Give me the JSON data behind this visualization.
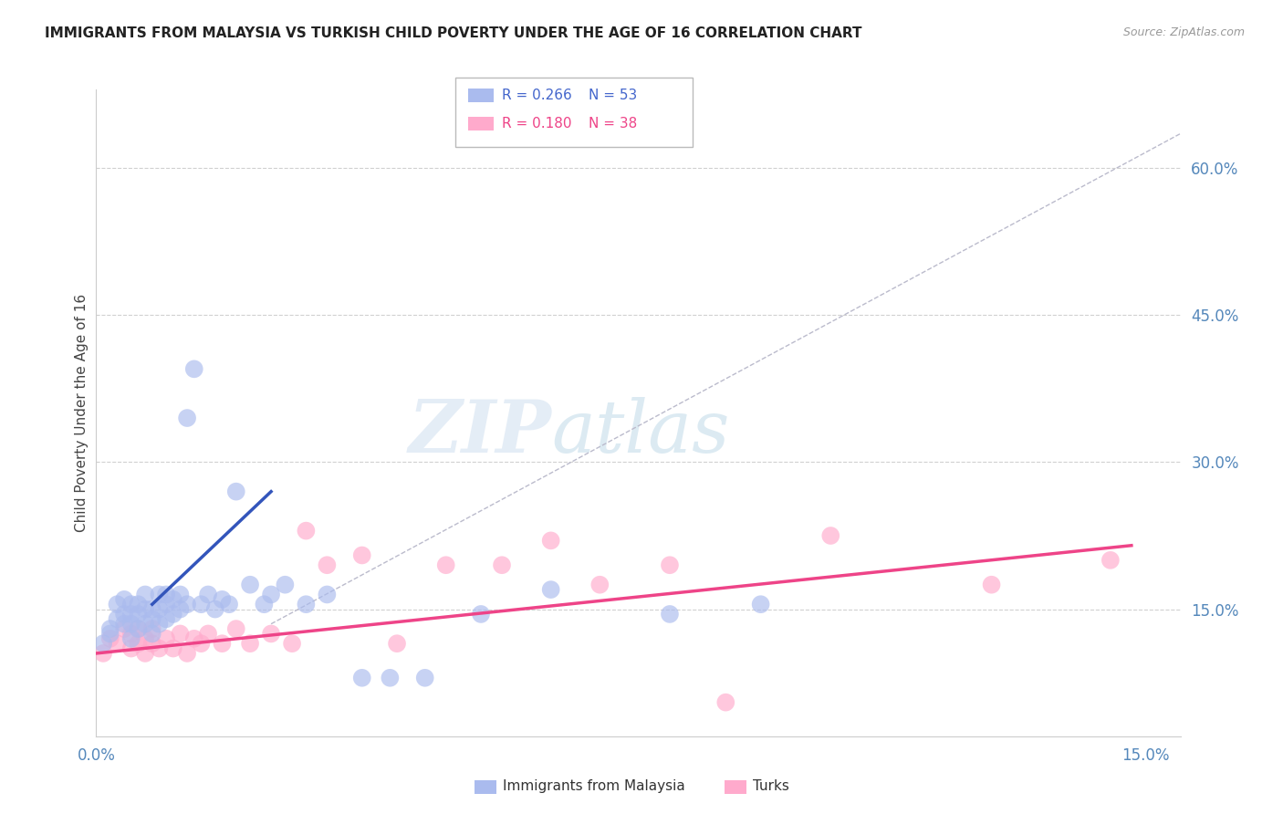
{
  "title": "IMMIGRANTS FROM MALAYSIA VS TURKISH CHILD POVERTY UNDER THE AGE OF 16 CORRELATION CHART",
  "source": "Source: ZipAtlas.com",
  "ylabel": "Child Poverty Under the Age of 16",
  "xlim": [
    0.0,
    0.155
  ],
  "ylim": [
    0.02,
    0.68
  ],
  "x_ticks": [
    0.0,
    0.15
  ],
  "x_tick_labels": [
    "0.0%",
    "15.0%"
  ],
  "y_ticks_right": [
    0.15,
    0.3,
    0.45,
    0.6
  ],
  "y_tick_labels_right": [
    "15.0%",
    "30.0%",
    "45.0%",
    "60.0%"
  ],
  "grid_color": "#d0d0d0",
  "watermark_zip": "ZIP",
  "watermark_atlas": "atlas",
  "blue_color": "#aabbee",
  "pink_color": "#ffaacc",
  "blue_line_color": "#3355bb",
  "pink_line_color": "#ee4488",
  "blue_scatter_x": [
    0.001,
    0.002,
    0.002,
    0.003,
    0.003,
    0.004,
    0.004,
    0.004,
    0.005,
    0.005,
    0.005,
    0.005,
    0.006,
    0.006,
    0.006,
    0.007,
    0.007,
    0.007,
    0.008,
    0.008,
    0.008,
    0.009,
    0.009,
    0.009,
    0.01,
    0.01,
    0.01,
    0.011,
    0.011,
    0.012,
    0.012,
    0.013,
    0.013,
    0.014,
    0.015,
    0.016,
    0.017,
    0.018,
    0.019,
    0.02,
    0.022,
    0.024,
    0.025,
    0.027,
    0.03,
    0.033,
    0.038,
    0.042,
    0.047,
    0.055,
    0.065,
    0.082,
    0.095
  ],
  "blue_scatter_y": [
    0.115,
    0.13,
    0.125,
    0.14,
    0.155,
    0.135,
    0.145,
    0.16,
    0.12,
    0.135,
    0.145,
    0.155,
    0.13,
    0.145,
    0.155,
    0.135,
    0.15,
    0.165,
    0.125,
    0.14,
    0.15,
    0.135,
    0.15,
    0.165,
    0.14,
    0.155,
    0.165,
    0.145,
    0.16,
    0.15,
    0.165,
    0.155,
    0.345,
    0.395,
    0.155,
    0.165,
    0.15,
    0.16,
    0.155,
    0.27,
    0.175,
    0.155,
    0.165,
    0.175,
    0.155,
    0.165,
    0.08,
    0.08,
    0.08,
    0.145,
    0.17,
    0.145,
    0.155
  ],
  "pink_scatter_x": [
    0.001,
    0.002,
    0.003,
    0.004,
    0.005,
    0.005,
    0.006,
    0.006,
    0.007,
    0.007,
    0.008,
    0.008,
    0.009,
    0.01,
    0.011,
    0.012,
    0.013,
    0.014,
    0.015,
    0.016,
    0.018,
    0.02,
    0.022,
    0.025,
    0.028,
    0.03,
    0.033,
    0.038,
    0.043,
    0.05,
    0.058,
    0.065,
    0.072,
    0.082,
    0.09,
    0.105,
    0.128,
    0.145
  ],
  "pink_scatter_y": [
    0.105,
    0.12,
    0.115,
    0.13,
    0.11,
    0.125,
    0.115,
    0.13,
    0.105,
    0.12,
    0.115,
    0.13,
    0.11,
    0.12,
    0.11,
    0.125,
    0.105,
    0.12,
    0.115,
    0.125,
    0.115,
    0.13,
    0.115,
    0.125,
    0.115,
    0.23,
    0.195,
    0.205,
    0.115,
    0.195,
    0.195,
    0.22,
    0.175,
    0.195,
    0.055,
    0.225,
    0.175,
    0.2
  ],
  "blue_trendline_x": [
    0.008,
    0.025
  ],
  "blue_trendline_y": [
    0.155,
    0.27
  ],
  "pink_trendline_x": [
    0.0,
    0.148
  ],
  "pink_trendline_y": [
    0.105,
    0.215
  ],
  "dashed_line_x": [
    0.025,
    0.155
  ],
  "dashed_line_y": [
    0.135,
    0.635
  ],
  "background_color": "#ffffff"
}
